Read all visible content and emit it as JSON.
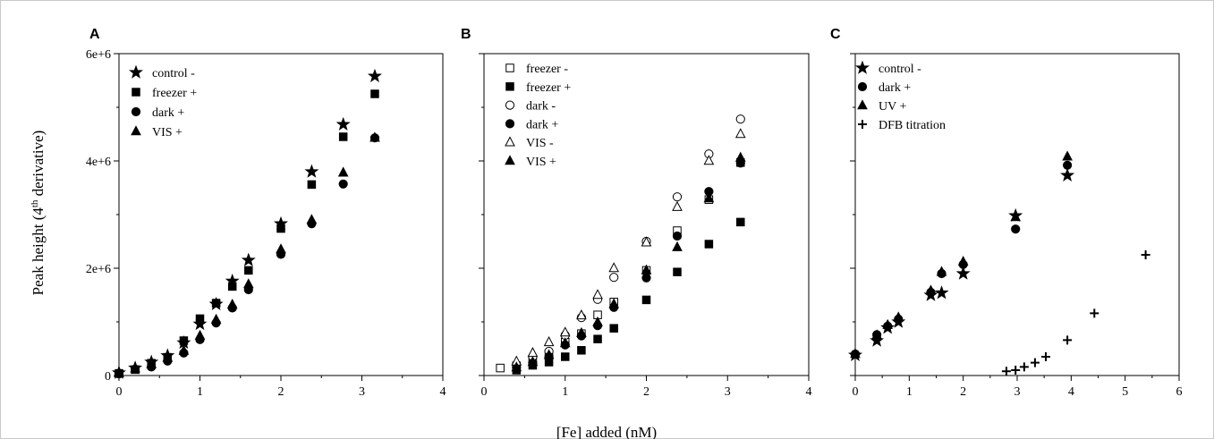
{
  "figure": {
    "ylabel_main": "Peak height (4",
    "ylabel_sup": "th",
    "ylabel_tail": " derivative)",
    "xlabel": "[Fe] added (nM)"
  },
  "chart_data": [
    {
      "type": "scatter",
      "panel": "A",
      "xlim": [
        0,
        4
      ],
      "ylim": [
        0,
        6000000
      ],
      "xticks": [
        0,
        1,
        2,
        3,
        4
      ],
      "yticks": [
        0,
        2000000,
        4000000,
        6000000
      ],
      "ytick_labels": [
        "0",
        "2e+6",
        "4e+6",
        "6e+6"
      ],
      "legend_position": "top-left",
      "series": [
        {
          "name": "control -",
          "marker": "star",
          "x": [
            0,
            0.2,
            0.4,
            0.6,
            0.8,
            1.0,
            1.2,
            1.4,
            1.6,
            2.0,
            2.38,
            2.77,
            3.16
          ],
          "y": [
            50000,
            140000,
            250000,
            370000,
            610000,
            960000,
            1330000,
            1760000,
            2150000,
            2830000,
            3800000,
            4680000,
            5580000
          ]
        },
        {
          "name": "freezer +",
          "marker": "square",
          "x": [
            0,
            0.2,
            0.4,
            0.6,
            0.8,
            1.0,
            1.2,
            1.4,
            1.6,
            2.0,
            2.38,
            2.77,
            3.16
          ],
          "y": [
            40000,
            110000,
            230000,
            340000,
            650000,
            1060000,
            1350000,
            1660000,
            1960000,
            2740000,
            3560000,
            4450000,
            5250000
          ]
        },
        {
          "name": "dark +",
          "marker": "circle",
          "x": [
            0,
            0.2,
            0.4,
            0.6,
            0.8,
            1.0,
            1.2,
            1.4,
            1.6,
            2.0,
            2.38,
            2.77,
            3.16
          ],
          "y": [
            30000,
            120000,
            160000,
            270000,
            420000,
            670000,
            980000,
            1260000,
            1600000,
            2260000,
            2830000,
            3570000,
            4430000
          ]
        },
        {
          "name": "VIS +",
          "marker": "triangle",
          "x": [
            0,
            0.2,
            0.4,
            0.6,
            0.8,
            1.0,
            1.2,
            1.4,
            1.6,
            2.0,
            2.38,
            2.77,
            3.16
          ],
          "y": [
            40000,
            130000,
            210000,
            330000,
            460000,
            740000,
            1040000,
            1320000,
            1700000,
            2350000,
            2900000,
            3780000,
            4430000
          ]
        }
      ]
    },
    {
      "type": "scatter",
      "panel": "B",
      "xlim": [
        0,
        4
      ],
      "ylim": [
        0,
        6000000
      ],
      "xticks": [
        0,
        1,
        2,
        3,
        4
      ],
      "yticks": [
        0,
        2000000,
        4000000,
        6000000
      ],
      "ytick_labels": [
        "",
        "",
        "",
        ""
      ],
      "legend_position": "top-left",
      "series": [
        {
          "name": "freezer -",
          "marker": "square-open",
          "x": [
            0.2,
            0.4,
            0.6,
            0.8,
            1.0,
            1.2,
            1.4,
            1.6,
            2.0,
            2.38,
            2.77,
            3.16
          ],
          "y": [
            140000,
            180000,
            300000,
            400000,
            620000,
            780000,
            1130000,
            1370000,
            1960000,
            2700000,
            3280000,
            3970000
          ]
        },
        {
          "name": "freezer +",
          "marker": "square",
          "x": [
            0.4,
            0.6,
            0.8,
            1.0,
            1.2,
            1.4,
            1.6,
            2.0,
            2.38,
            2.77,
            3.16
          ],
          "y": [
            100000,
            190000,
            250000,
            350000,
            470000,
            680000,
            880000,
            1410000,
            1930000,
            2450000,
            2860000
          ]
        },
        {
          "name": "dark -",
          "marker": "circle-open",
          "x": [
            0.4,
            0.6,
            0.8,
            1.0,
            1.2,
            1.4,
            1.6,
            2.0,
            2.38,
            2.77,
            3.16
          ],
          "y": [
            200000,
            350000,
            450000,
            750000,
            1080000,
            1420000,
            1830000,
            2500000,
            3330000,
            4130000,
            4780000
          ]
        },
        {
          "name": "dark +",
          "marker": "circle",
          "x": [
            0.4,
            0.6,
            0.8,
            1.0,
            1.2,
            1.4,
            1.6,
            2.0,
            2.38,
            2.77,
            3.16
          ],
          "y": [
            150000,
            230000,
            350000,
            570000,
            740000,
            930000,
            1270000,
            1820000,
            2600000,
            3430000,
            3960000
          ]
        },
        {
          "name": "VIS -",
          "marker": "triangle-open",
          "x": [
            0.4,
            0.6,
            0.8,
            1.0,
            1.2,
            1.4,
            1.6,
            2.0,
            2.38,
            2.77,
            3.16
          ],
          "y": [
            260000,
            420000,
            620000,
            800000,
            1120000,
            1500000,
            2000000,
            2480000,
            3140000,
            4000000,
            4500000
          ]
        },
        {
          "name": "VIS +",
          "marker": "triangle",
          "x": [
            0.4,
            0.6,
            0.8,
            1.0,
            1.2,
            1.4,
            1.6,
            2.0,
            2.38,
            2.77,
            3.16
          ],
          "y": [
            150000,
            250000,
            380000,
            600000,
            790000,
            990000,
            1330000,
            1960000,
            2390000,
            3300000,
            4060000
          ]
        }
      ]
    },
    {
      "type": "scatter",
      "panel": "C",
      "xlim": [
        0,
        6
      ],
      "ylim": [
        0,
        6000000
      ],
      "xticks": [
        0,
        1,
        2,
        3,
        4,
        5,
        6
      ],
      "yticks": [
        0,
        2000000,
        4000000,
        6000000
      ],
      "ytick_labels": [
        "",
        "",
        "",
        ""
      ],
      "legend_position": "top-left",
      "series": [
        {
          "name": "control -",
          "marker": "star",
          "x": [
            0,
            0.4,
            0.6,
            0.8,
            1.4,
            1.6,
            2.0,
            2.97,
            3.93
          ],
          "y": [
            380000,
            650000,
            890000,
            1000000,
            1500000,
            1540000,
            1900000,
            2980000,
            3730000
          ]
        },
        {
          "name": "dark +",
          "marker": "circle",
          "x": [
            0,
            0.4,
            0.6,
            0.8,
            1.4,
            1.6,
            2.0,
            2.97,
            3.93
          ],
          "y": [
            400000,
            760000,
            920000,
            1050000,
            1550000,
            1900000,
            2070000,
            2730000,
            3920000
          ]
        },
        {
          "name": "UV +",
          "marker": "triangle",
          "x": [
            0,
            0.4,
            0.6,
            0.8,
            1.4,
            1.6,
            2.0,
            2.97,
            3.93
          ],
          "y": [
            400000,
            750000,
            940000,
            1080000,
            1580000,
            1930000,
            2120000,
            2950000,
            4080000
          ]
        },
        {
          "name": "DFB titration",
          "marker": "plus",
          "x": [
            2.8,
            2.97,
            3.13,
            3.33,
            3.53,
            3.93,
            4.43,
            5.38
          ],
          "y": [
            80000,
            100000,
            160000,
            240000,
            350000,
            660000,
            1160000,
            2250000
          ]
        }
      ]
    }
  ]
}
